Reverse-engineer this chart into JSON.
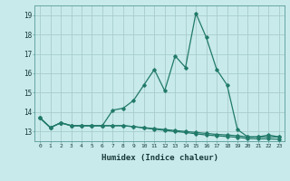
{
  "xlabel": "Humidex (Indice chaleur)",
  "x_values": [
    0,
    1,
    2,
    3,
    4,
    5,
    6,
    7,
    8,
    9,
    10,
    11,
    12,
    13,
    14,
    15,
    16,
    17,
    18,
    19,
    20,
    21,
    22,
    23
  ],
  "line1": [
    13.7,
    13.2,
    13.45,
    13.3,
    13.3,
    13.3,
    13.3,
    14.1,
    14.2,
    14.6,
    15.4,
    16.2,
    15.1,
    16.9,
    16.3,
    19.1,
    17.85,
    16.2,
    15.4,
    13.1,
    12.72,
    12.72,
    12.82,
    12.72
  ],
  "line2": [
    13.7,
    13.2,
    13.45,
    13.3,
    13.3,
    13.3,
    13.3,
    13.3,
    13.3,
    13.25,
    13.2,
    13.15,
    13.1,
    13.05,
    13.0,
    12.95,
    12.9,
    12.85,
    12.82,
    12.78,
    12.72,
    12.72,
    12.72,
    12.72
  ],
  "line3": [
    13.7,
    13.2,
    13.45,
    13.3,
    13.3,
    13.3,
    13.3,
    13.3,
    13.3,
    13.25,
    13.18,
    13.12,
    13.06,
    13.0,
    12.95,
    12.88,
    12.82,
    12.78,
    12.74,
    12.7,
    12.64,
    12.62,
    12.62,
    12.6
  ],
  "line_color": "#217a6a",
  "bg_color": "#c8eaea",
  "grid_color": "#a8cccc",
  "ylim_min": 12.5,
  "ylim_max": 19.5,
  "yticks": [
    13,
    14,
    15,
    16,
    17,
    18,
    19
  ],
  "marker": "D",
  "markersize": 1.8,
  "linewidth": 0.9
}
